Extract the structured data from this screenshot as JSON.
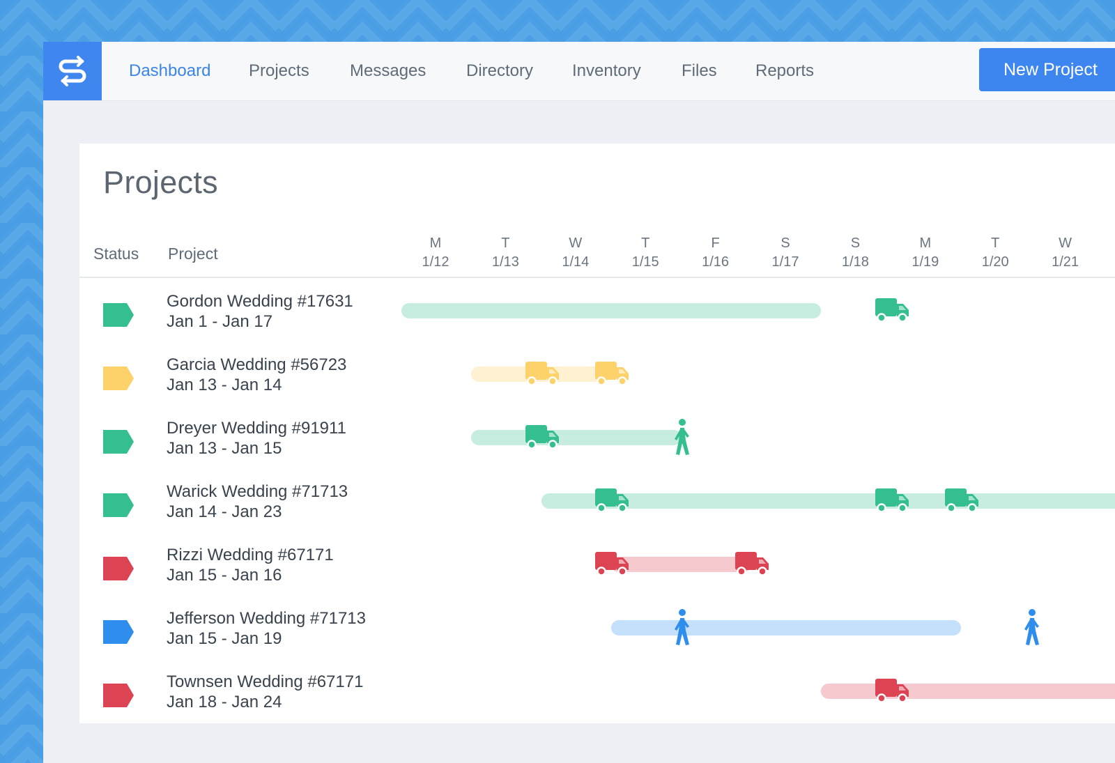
{
  "nav": {
    "items": [
      {
        "label": "Dashboard",
        "active": true
      },
      {
        "label": "Projects",
        "active": false
      },
      {
        "label": "Messages",
        "active": false
      },
      {
        "label": "Directory",
        "active": false
      },
      {
        "label": "Inventory",
        "active": false
      },
      {
        "label": "Files",
        "active": false
      },
      {
        "label": "Reports",
        "active": false
      }
    ],
    "new_button_label": "New Project"
  },
  "page": {
    "title": "Projects",
    "status_header": "Status",
    "project_header": "Project"
  },
  "timeline": {
    "days": [
      {
        "dow": "M",
        "date": "1/12"
      },
      {
        "dow": "T",
        "date": "1/13"
      },
      {
        "dow": "W",
        "date": "1/14"
      },
      {
        "dow": "T",
        "date": "1/15"
      },
      {
        "dow": "F",
        "date": "1/16"
      },
      {
        "dow": "S",
        "date": "1/17"
      },
      {
        "dow": "S",
        "date": "1/18"
      },
      {
        "dow": "M",
        "date": "1/19"
      },
      {
        "dow": "T",
        "date": "1/20"
      },
      {
        "dow": "W",
        "date": "1/21"
      }
    ]
  },
  "colors": {
    "green": "#35bf91",
    "green_light": "#c6ede0",
    "yellow": "#fdd26a",
    "yellow_light": "#fff1d2",
    "red": "#dc4454",
    "red_light": "#f6c9cf",
    "blue": "#2f8eed",
    "blue_light": "#c4e0fb",
    "brand": "#3f86ef"
  },
  "projects": [
    {
      "name": "Gordon Wedding #17631",
      "dates": "Jan 1 - Jan 17",
      "status": "green",
      "events": [
        {
          "icon": "truck-icon",
          "day": 7
        }
      ]
    },
    {
      "name": "Garcia Wedding #56723",
      "dates": "Jan 13 - Jan 14",
      "status": "yellow",
      "events": [
        {
          "icon": "truck-icon",
          "day": 2
        },
        {
          "icon": "truck-icon",
          "day": 3
        }
      ]
    },
    {
      "name": "Dreyer Wedding #91911",
      "dates": "Jan 13 - Jan 15",
      "status": "green",
      "events": [
        {
          "icon": "truck-icon",
          "day": 2
        },
        {
          "icon": "walking-person-icon",
          "day": 4
        }
      ]
    },
    {
      "name": "Warick Wedding #71713",
      "dates": "Jan 14 - Jan 23",
      "status": "green",
      "events": [
        {
          "icon": "truck-icon",
          "day": 3
        },
        {
          "icon": "truck-icon",
          "day": 7
        },
        {
          "icon": "truck-icon",
          "day": 8
        }
      ]
    },
    {
      "name": "Rizzi Wedding #67171",
      "dates": "Jan 15 - Jan 16",
      "status": "red",
      "events": [
        {
          "icon": "truck-icon",
          "day": 3
        },
        {
          "icon": "truck-icon",
          "day": 5
        }
      ]
    },
    {
      "name": "Jefferson Wedding #71713",
      "dates": "Jan 15 - Jan 19",
      "status": "blue",
      "events": [
        {
          "icon": "walking-person-icon",
          "day": 4
        },
        {
          "icon": "walking-person-icon",
          "day": 9
        }
      ]
    },
    {
      "name": "Townsen Wedding #67171",
      "dates": "Jan 18 - Jan 24",
      "status": "red",
      "events": [
        {
          "icon": "truck-icon",
          "day": 7
        }
      ]
    }
  ]
}
